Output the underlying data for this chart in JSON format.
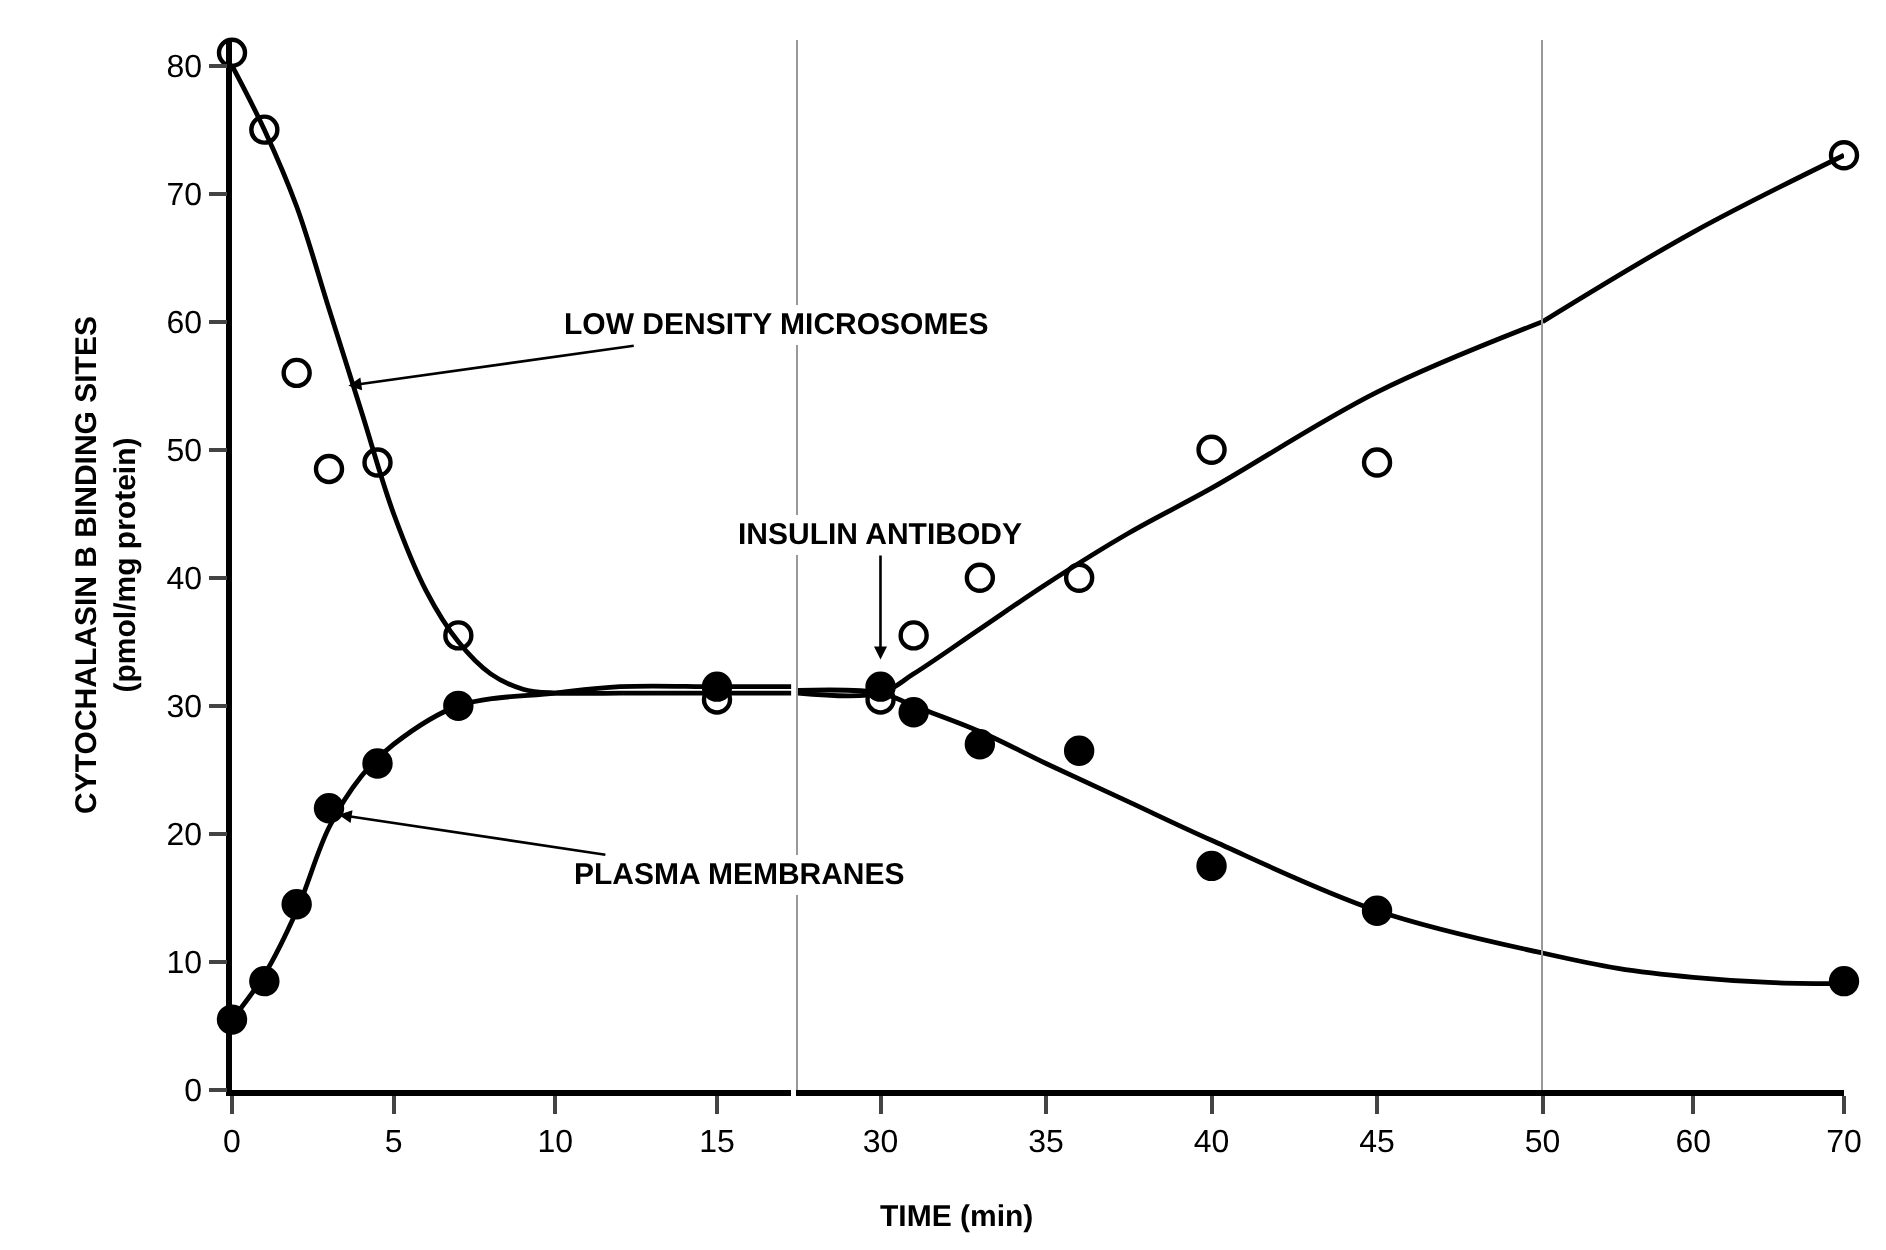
{
  "chart_data": [
    {
      "type": "line",
      "ylabel": "CYTOCHALASIN B BINDING SITES\n(pmol/mg protein)",
      "xlim": [
        0,
        17.3
      ],
      "xticks": [
        0,
        5,
        10,
        15
      ],
      "ylim": [
        0,
        82
      ],
      "yticks": [
        0,
        10,
        20,
        30,
        40,
        50,
        60,
        70,
        80
      ],
      "annotations": [
        {
          "text": "LOW DENSITY MICROSOMES",
          "x": 3.6,
          "y": 55
        },
        {
          "text": "PLASMA MEMBRANES",
          "x": 3.3,
          "y": 21.5
        }
      ],
      "series": [
        {
          "type": "scatter",
          "marker": "circle",
          "color": "#ffffff",
          "x": [
            0,
            1,
            2,
            3,
            4.5,
            7,
            15
          ],
          "values": [
            81,
            75,
            56,
            48.5,
            49,
            35.5,
            30.5
          ]
        },
        {
          "type": "scatter",
          "marker": "circle",
          "color": "#000000",
          "x": [
            0,
            1,
            2,
            3,
            4.5,
            7,
            15
          ],
          "values": [
            5.5,
            8.5,
            14.5,
            22,
            25.5,
            30,
            31.5
          ]
        },
        {
          "color": "#000000",
          "x": [
            0,
            1,
            2,
            3,
            4,
            5,
            6,
            7,
            8,
            9,
            10,
            12,
            15,
            17.3
          ],
          "values": [
            80,
            75,
            69,
            61,
            53,
            45,
            39,
            35,
            32.5,
            31.3,
            31,
            31,
            31,
            31
          ]
        },
        {
          "color": "#000000",
          "x": [
            0,
            1,
            2,
            3,
            4,
            5,
            7,
            10,
            12,
            15,
            17.3
          ],
          "values": [
            5.5,
            9,
            14,
            20.5,
            24.5,
            27,
            30,
            31,
            31.5,
            31.5,
            31.5
          ]
        }
      ]
    },
    {
      "type": "line",
      "xlabel": "TIME (min)",
      "xlim": [
        27.5,
        50
      ],
      "xticks": [
        30,
        35,
        40,
        45
      ],
      "ylim": [
        0,
        82
      ],
      "tick_labels": "x",
      "annotations": [
        "INSULIN ANTIBODY"
      ],
      "series": [
        {
          "type": "scatter",
          "marker": "circle",
          "color": "#ffffff",
          "x": [
            30,
            31,
            33,
            36,
            40,
            45
          ],
          "values": [
            30.5,
            35.5,
            40,
            40,
            50,
            49
          ]
        },
        {
          "type": "scatter",
          "marker": "circle",
          "color": "#000000",
          "x": [
            30,
            31,
            33,
            36,
            40,
            45
          ],
          "values": [
            31.5,
            29.5,
            27,
            26.5,
            17.5,
            14
          ]
        },
        {
          "color": "#000000",
          "x": [
            27.5,
            30,
            31,
            33,
            35,
            37.5,
            40,
            45,
            50
          ],
          "values": [
            31,
            31,
            32.5,
            36,
            39.5,
            43.5,
            47,
            54.5,
            60
          ]
        },
        {
          "color": "#000000",
          "x": [
            27.5,
            30,
            31,
            33,
            35,
            37.5,
            40,
            45,
            50
          ],
          "values": [
            31.2,
            31,
            30,
            28,
            25.5,
            22.5,
            19.5,
            14,
            10.7
          ]
        }
      ]
    },
    {
      "type": "line",
      "xlim": [
        50,
        70
      ],
      "xticks": [
        50,
        60,
        70
      ],
      "ylim": [
        0,
        82
      ],
      "tick_labels": "x",
      "series": [
        {
          "type": "scatter",
          "marker": "circle",
          "color": "#ffffff",
          "x": [
            70
          ],
          "values": [
            73
          ]
        },
        {
          "type": "scatter",
          "marker": "circle",
          "color": "#000000",
          "x": [
            70
          ],
          "values": [
            8.5
          ]
        },
        {
          "color": "#000000",
          "x": [
            50,
            60,
            70
          ],
          "values": [
            60,
            67,
            73
          ]
        },
        {
          "color": "#000000",
          "x": [
            50,
            55,
            60,
            65,
            70
          ],
          "values": [
            10.7,
            9.5,
            8.8,
            8.4,
            8.3
          ]
        }
      ]
    }
  ]
}
